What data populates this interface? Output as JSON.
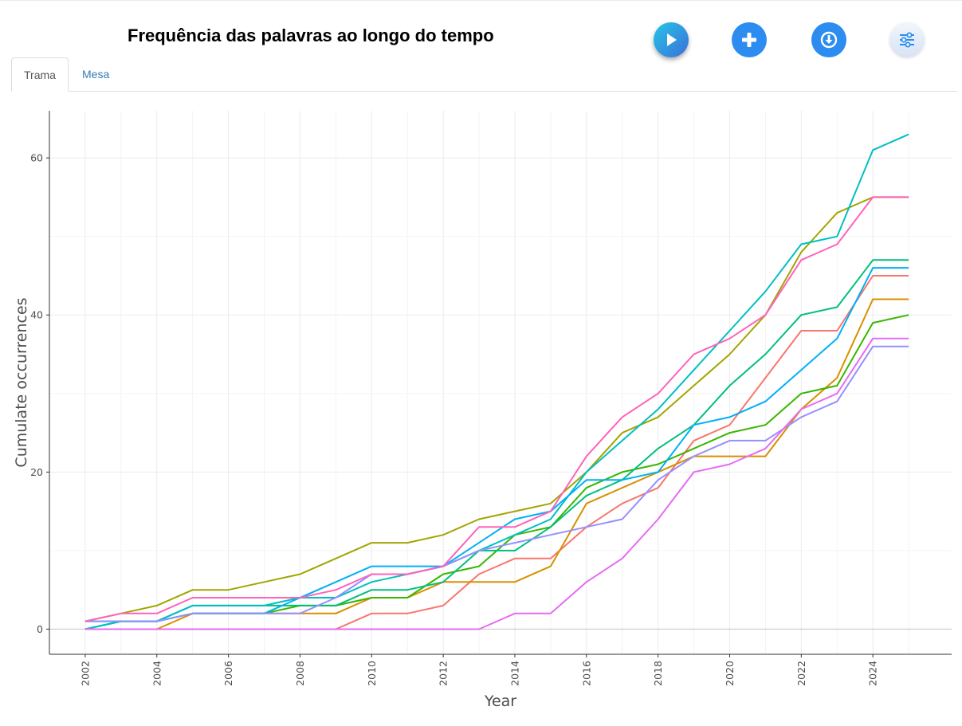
{
  "header": {
    "title": "Frequência das palavras ao longo do tempo"
  },
  "toolbar": {
    "buttons": [
      {
        "icon": "play-icon",
        "label": ""
      },
      {
        "icon": "plus-icon",
        "label": ""
      },
      {
        "icon": "download-icon",
        "label": ""
      },
      {
        "icon": "sliders-icon",
        "label": ""
      }
    ],
    "accent": "#2d8cf0"
  },
  "tabs": [
    {
      "label": "Trama",
      "active": true
    },
    {
      "label": "Mesa",
      "active": false
    }
  ],
  "chart_data": {
    "type": "line",
    "title": "",
    "xlabel": "Year",
    "ylabel": "Cumulate occurrences",
    "xlim": [
      2001,
      2026.2
    ],
    "ylim": [
      -3.2,
      66
    ],
    "x_ticks": [
      2002,
      2004,
      2006,
      2008,
      2010,
      2012,
      2014,
      2016,
      2018,
      2020,
      2022,
      2024
    ],
    "y_ticks": [
      0,
      20,
      40,
      60
    ],
    "grid": true,
    "legend": "none",
    "x": [
      2002,
      2003,
      2004,
      2005,
      2006,
      2007,
      2008,
      2009,
      2010,
      2011,
      2012,
      2013,
      2014,
      2015,
      2016,
      2017,
      2018,
      2019,
      2020,
      2021,
      2022,
      2023,
      2024,
      2025
    ],
    "series": [
      {
        "color": "#F8766D",
        "values": [
          0,
          0,
          0,
          0,
          0,
          0,
          0,
          0,
          2,
          2,
          3,
          7,
          9,
          9,
          13,
          16,
          18,
          24,
          26,
          32,
          38,
          38,
          45,
          45
        ]
      },
      {
        "color": "#D89000",
        "values": [
          0,
          0,
          0,
          2,
          2,
          2,
          2,
          2,
          4,
          4,
          6,
          6,
          6,
          8,
          16,
          18,
          20,
          22,
          22,
          22,
          28,
          32,
          42,
          42
        ]
      },
      {
        "color": "#A3A500",
        "values": [
          1,
          2,
          3,
          5,
          5,
          6,
          7,
          9,
          11,
          11,
          12,
          14,
          15,
          16,
          20,
          25,
          27,
          31,
          35,
          40,
          48,
          53,
          55,
          55
        ]
      },
      {
        "color": "#39B600",
        "values": [
          0,
          1,
          1,
          2,
          2,
          2,
          3,
          3,
          4,
          4,
          7,
          8,
          12,
          13,
          18,
          20,
          21,
          23,
          25,
          26,
          30,
          31,
          39,
          40
        ]
      },
      {
        "color": "#00BF7D",
        "values": [
          0,
          1,
          1,
          3,
          3,
          3,
          3,
          3,
          5,
          5,
          6,
          10,
          10,
          13,
          17,
          19,
          23,
          26,
          31,
          35,
          40,
          41,
          47,
          47
        ]
      },
      {
        "color": "#00BFC4",
        "values": [
          0,
          1,
          1,
          3,
          3,
          3,
          4,
          4,
          6,
          7,
          8,
          10,
          12,
          14,
          20,
          24,
          28,
          33,
          38,
          43,
          49,
          50,
          61,
          63
        ]
      },
      {
        "color": "#00B0F6",
        "values": [
          1,
          1,
          1,
          2,
          2,
          2,
          4,
          6,
          8,
          8,
          8,
          11,
          14,
          15,
          19,
          19,
          20,
          26,
          27,
          29,
          33,
          37,
          46,
          46
        ]
      },
      {
        "color": "#9590FF",
        "values": [
          1,
          1,
          1,
          2,
          2,
          2,
          2,
          4,
          7,
          7,
          8,
          10,
          11,
          12,
          13,
          14,
          19,
          22,
          24,
          24,
          27,
          29,
          36,
          36
        ]
      },
      {
        "color": "#E76BF3",
        "values": [
          0,
          0,
          0,
          0,
          0,
          0,
          0,
          0,
          0,
          0,
          0,
          0,
          2,
          2,
          6,
          9,
          14,
          20,
          21,
          23,
          28,
          30,
          37,
          37
        ]
      },
      {
        "color": "#FF62BC",
        "values": [
          1,
          2,
          2,
          4,
          4,
          4,
          4,
          5,
          7,
          7,
          8,
          13,
          13,
          15,
          22,
          27,
          30,
          35,
          37,
          40,
          47,
          49,
          55,
          55
        ]
      }
    ]
  }
}
